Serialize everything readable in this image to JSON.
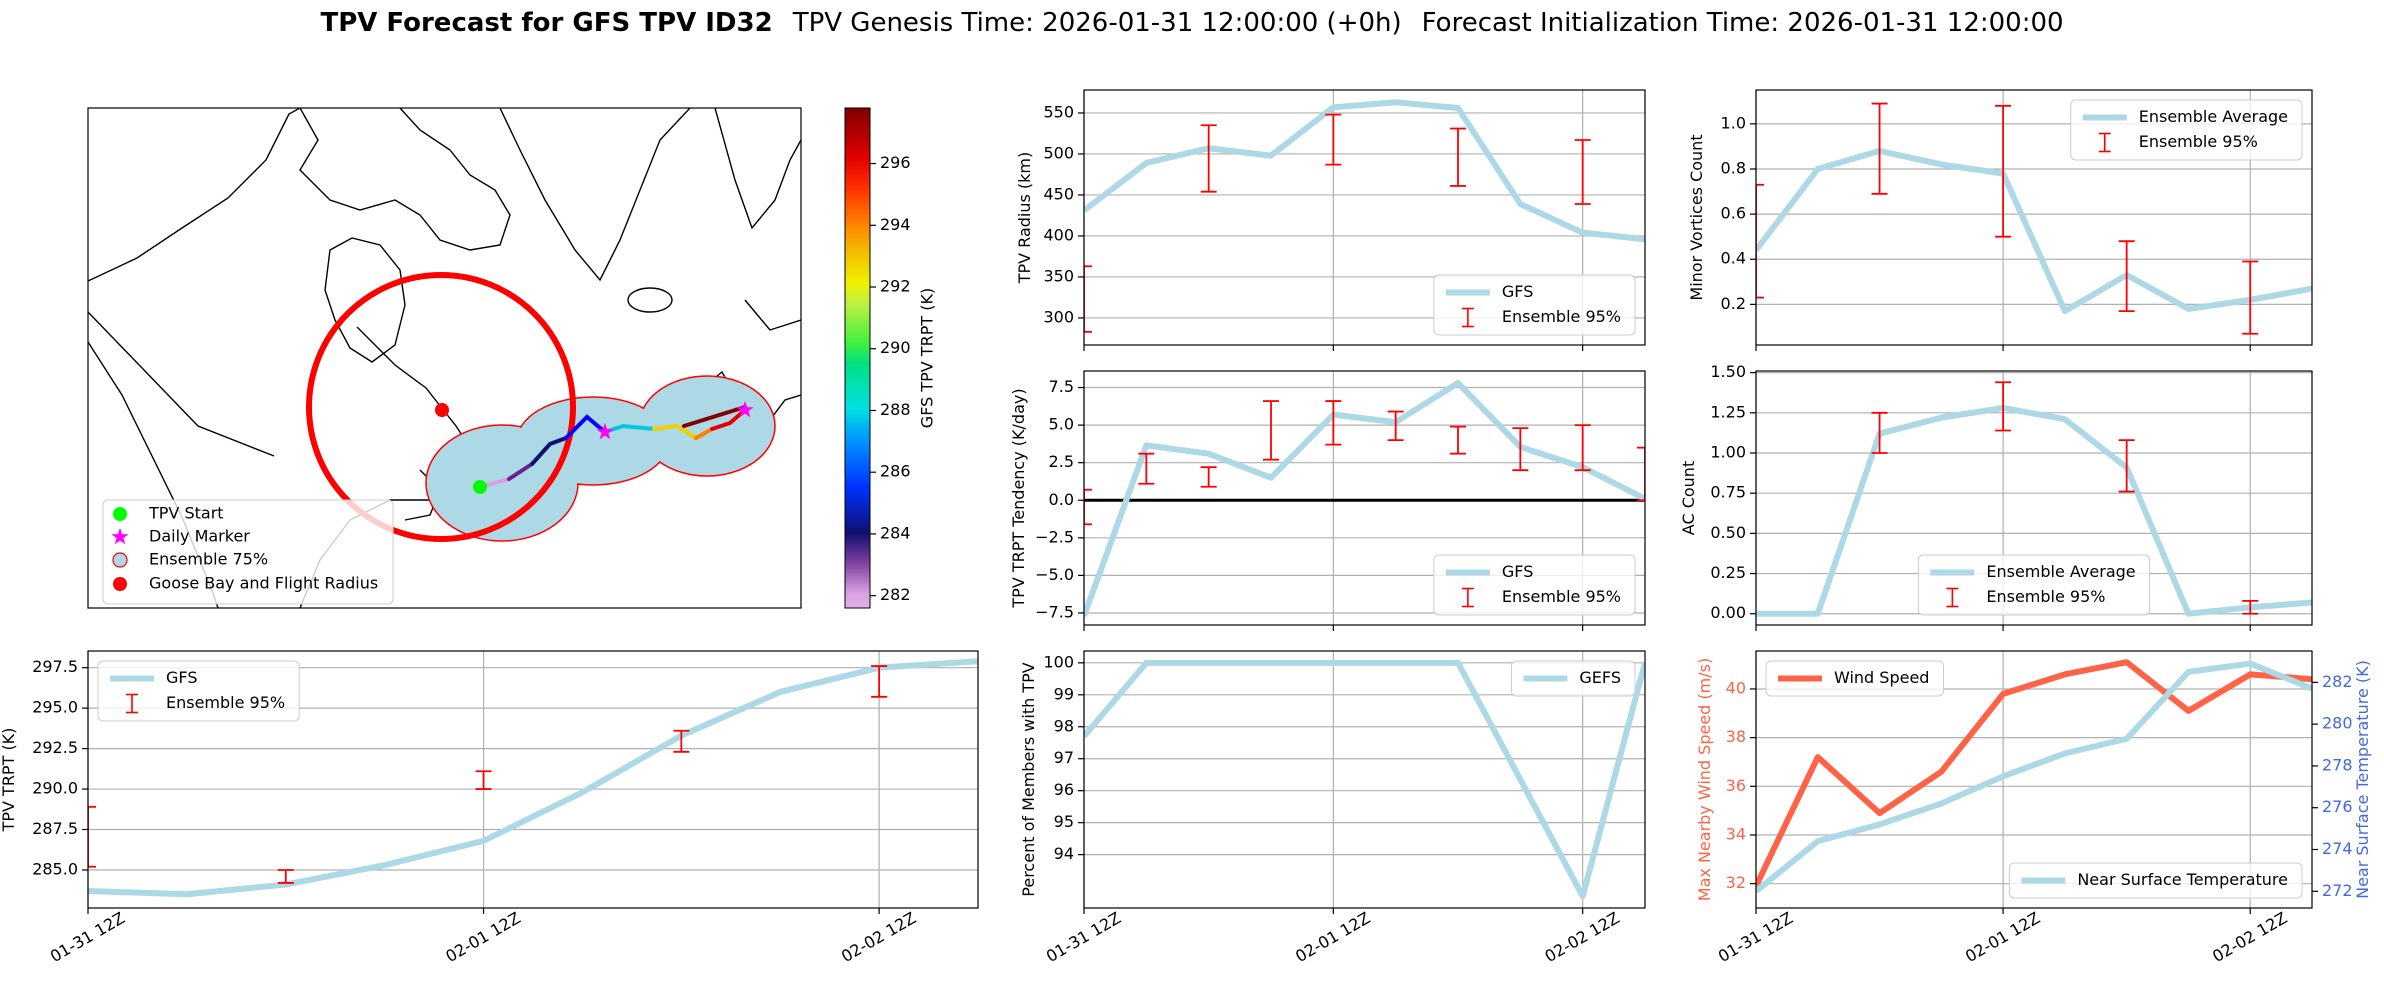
{
  "suptitle": {
    "main": "TPV Forecast for GFS TPV ID32",
    "genesis": "TPV Genesis Time: 2026-01-31 12:00:00 (+0h)",
    "init": "Forecast Initialization Time: 2026-01-31 12:00:00"
  },
  "chart_data": [
    {
      "type": "map",
      "legend": [
        "TPV Start",
        "Daily Marker",
        "Ensemble 75%",
        "Goose Bay and Flight Radius"
      ],
      "colorbar": {
        "label": "GFS TPV TRPT (K)",
        "lim": [
          281.6,
          297.8
        ],
        "ticks": [
          282,
          284,
          286,
          288,
          290,
          292,
          294,
          296
        ]
      }
    },
    {
      "type": "line",
      "ylabel": "TPV Radius (km)",
      "x": [
        0,
        6,
        12,
        18,
        24,
        30,
        36,
        42,
        48,
        54
      ],
      "xlim": [
        0,
        54
      ],
      "xticks": [
        0,
        24,
        48
      ],
      "ylim": [
        267,
        578
      ],
      "yticks": [
        300,
        350,
        400,
        450,
        500,
        550
      ],
      "grid": true,
      "legend": "lower right",
      "series": [
        {
          "name": "GFS",
          "color": "#add8e6",
          "values": [
            431,
            489,
            507,
            498,
            557,
            563,
            556,
            439,
            404,
            396
          ]
        }
      ],
      "errorbars": {
        "name": "Ensemble 95%",
        "color": "#ff0000",
        "x": [
          0,
          12,
          24,
          36,
          48
        ],
        "low": [
          283,
          454,
          487,
          461,
          439
        ],
        "high": [
          363,
          535,
          548,
          531,
          517
        ]
      }
    },
    {
      "type": "line",
      "ylabel": "Minor Vortices Count",
      "x": [
        0,
        6,
        12,
        18,
        24,
        30,
        36,
        42,
        48,
        54
      ],
      "xlim": [
        0,
        54
      ],
      "xticks": [
        0,
        24,
        48
      ],
      "ylim": [
        0.02,
        1.15
      ],
      "yticks": [
        0.2,
        0.4,
        0.6,
        0.8,
        {
          "value": 1,
          "label": "1.0"
        }
      ],
      "grid": true,
      "legend": "upper right",
      "series": [
        {
          "name": "Ensemble Average",
          "color": "#add8e6",
          "values": [
            0.44,
            0.8,
            0.88,
            0.82,
            0.78,
            0.17,
            0.33,
            0.18,
            0.22,
            0.27
          ]
        }
      ],
      "errorbars": {
        "name": "Ensemble 95%",
        "color": "#ff0000",
        "x": [
          0,
          12,
          24,
          36,
          48
        ],
        "low": [
          0.23,
          0.69,
          0.5,
          0.17,
          0.07
        ],
        "high": [
          0.73,
          1.09,
          1.08,
          0.48,
          0.39
        ]
      }
    },
    {
      "type": "line",
      "ylabel": "TPV TRPT Tendency (K/day)",
      "x": [
        0,
        6,
        12,
        18,
        24,
        30,
        36,
        42,
        48,
        54
      ],
      "xlim": [
        0,
        54
      ],
      "xticks": [
        0,
        24,
        48
      ],
      "ylim": [
        -8.3,
        8.6
      ],
      "yticks": [
        {
          "value": -7.5,
          "label": "−7.5"
        },
        {
          "value": -5,
          "label": "−5.0"
        },
        {
          "value": -2.5,
          "label": "−2.5"
        },
        {
          "value": 0,
          "label": "0.0"
        },
        2.5,
        {
          "value": 5,
          "label": "5.0"
        },
        7.5
      ],
      "grid": true,
      "legend": "lower right",
      "hline": {
        "value": 0,
        "color": "#000000"
      },
      "series": [
        {
          "name": "GFS",
          "color": "#add8e6",
          "values": [
            -7.7,
            3.65,
            3.1,
            1.5,
            5.7,
            5.2,
            7.8,
            3.55,
            2.2,
            0.1
          ]
        }
      ],
      "errorbars": {
        "name": "Ensemble 95%",
        "color": "#ff0000",
        "x": [
          0,
          6,
          12,
          18,
          24,
          30,
          36,
          42,
          48,
          54
        ],
        "low": [
          -1.6,
          1.1,
          0.9,
          2.7,
          3.7,
          4.0,
          3.1,
          2.0,
          2.0,
          0.0
        ],
        "high": [
          0.7,
          3.1,
          2.2,
          6.6,
          6.6,
          5.9,
          4.9,
          4.8,
          5.0,
          3.5
        ]
      }
    },
    {
      "type": "line",
      "ylabel": "AC Count",
      "x": [
        0,
        6,
        12,
        18,
        24,
        30,
        36,
        42,
        48,
        54
      ],
      "xlim": [
        0,
        54
      ],
      "xticks": [
        0,
        24,
        48
      ],
      "ylim": [
        -0.07,
        1.51
      ],
      "yticks": [
        {
          "value": 0,
          "label": "0.00"
        },
        0.25,
        {
          "value": 0.5,
          "label": "0.50"
        },
        0.75,
        {
          "value": 1,
          "label": "1.00"
        },
        1.25,
        {
          "value": 1.5,
          "label": "1.50"
        }
      ],
      "grid": true,
      "legend": "lower center",
      "series": [
        {
          "name": "Ensemble Average",
          "color": "#add8e6",
          "values": [
            0,
            0,
            1.12,
            1.22,
            1.28,
            1.21,
            0.91,
            0,
            0.04,
            0.07
          ]
        }
      ],
      "errorbars": {
        "name": "Ensemble 95%",
        "color": "#ff0000",
        "x": [
          12,
          24,
          36,
          48
        ],
        "low": [
          1.0,
          1.14,
          0.76,
          0.0
        ],
        "high": [
          1.25,
          1.44,
          1.08,
          0.08
        ]
      }
    },
    {
      "type": "line",
      "ylabel": "TPV TRPT (K)",
      "x": [
        0,
        6,
        12,
        18,
        24,
        30,
        36,
        42,
        48,
        54
      ],
      "xlim": [
        0,
        54
      ],
      "xticks": [
        {
          "value": 0,
          "label": "01-31 12Z"
        },
        {
          "value": 24,
          "label": "02-01 12Z"
        },
        {
          "value": 48,
          "label": "02-02 12Z"
        }
      ],
      "ylim": [
        282.65,
        298.53
      ],
      "yticks": [
        {
          "value": 285,
          "label": "285.0"
        },
        287.5,
        {
          "value": 290,
          "label": "290.0"
        },
        292.5,
        {
          "value": 295,
          "label": "295.0"
        },
        297.5
      ],
      "grid": true,
      "legend": "upper left",
      "series": [
        {
          "name": "GFS",
          "color": "#add8e6",
          "values": [
            283.7,
            283.5,
            284.1,
            285.3,
            286.8,
            289.8,
            293.3,
            296.0,
            297.5,
            297.9
          ]
        }
      ],
      "errorbars": {
        "name": "Ensemble 95%",
        "color": "#ff0000",
        "x": [
          0,
          12,
          24,
          36,
          48
        ],
        "low": [
          285.2,
          284.2,
          290.0,
          292.3,
          295.7
        ],
        "high": [
          288.9,
          285.0,
          291.1,
          293.6,
          297.6
        ]
      }
    },
    {
      "type": "line",
      "ylabel": "Percent of Members with TPV",
      "x": [
        0,
        6,
        12,
        18,
        24,
        30,
        36,
        42,
        48,
        54
      ],
      "xlim": [
        0,
        54
      ],
      "xticks": [
        {
          "value": 0,
          "label": "01-31 12Z"
        },
        {
          "value": 24,
          "label": "02-01 12Z"
        },
        {
          "value": 48,
          "label": "02-02 12Z"
        }
      ],
      "ylim": [
        92.33,
        100.37
      ],
      "yticks": [
        94,
        95,
        96,
        97,
        98,
        99,
        100
      ],
      "grid": true,
      "legend": "upper right",
      "series": [
        {
          "name": "GEFS",
          "color": "#add8e6",
          "values": [
            97.7,
            100,
            100,
            100,
            100,
            100,
            100,
            96.35,
            92.7,
            100
          ]
        }
      ]
    },
    {
      "type": "line",
      "ylabel": "Max Nearby Wind Speed (m/s)",
      "ylabel_color": "#ff6347",
      "y2label": "Near Surface Temperature (K)",
      "y2label_color": "#4169e1",
      "x": [
        0,
        6,
        12,
        18,
        24,
        30,
        36,
        42,
        48,
        54
      ],
      "xlim": [
        0,
        54
      ],
      "xticks": [
        {
          "value": 0,
          "label": "01-31 12Z"
        },
        {
          "value": 24,
          "label": "02-01 12Z"
        },
        {
          "value": 48,
          "label": "02-02 12Z"
        }
      ],
      "ylim": [
        31.0,
        41.56
      ],
      "yticks": [
        32,
        34,
        36,
        38,
        40
      ],
      "y2lim": [
        271.2,
        283.5
      ],
      "y2ticks": [
        272,
        274,
        276,
        278,
        280,
        282
      ],
      "grid": true,
      "series": [
        {
          "name": "Wind Speed",
          "color": "#ff6347",
          "legend": "upper left",
          "values": [
            31.9,
            37.2,
            34.9,
            36.6,
            39.8,
            40.6,
            41.1,
            39.1,
            40.6,
            40.4
          ]
        },
        {
          "name": "Near Surface Temperature",
          "color": "#add8e6",
          "axis": "y2",
          "legend": "lower right",
          "values": [
            272.0,
            274.4,
            275.2,
            276.2,
            277.5,
            278.6,
            279.3,
            282.5,
            282.9,
            281.7
          ]
        }
      ]
    }
  ]
}
